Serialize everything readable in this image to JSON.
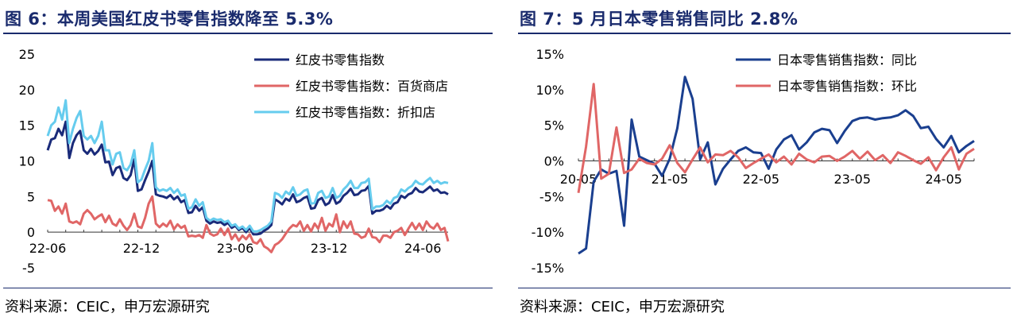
{
  "charts": [
    {
      "title": "图 6：本周美国红皮书零售指数降至 5.3%",
      "source": "资料来源：CEIC，申万宏源研究",
      "chart_data": {
        "type": "line",
        "xlabel": "",
        "ylabel": "",
        "ylim": [
          -5,
          25
        ],
        "yticks": [
          "25",
          "20",
          "15",
          "10",
          "5",
          "0",
          "-5"
        ],
        "ytick_values": [
          25,
          20,
          15,
          10,
          5,
          0,
          -5
        ],
        "xticks": [
          "22-06",
          "22-12",
          "23-06",
          "23-12",
          "24-06"
        ],
        "xtick_index": [
          0,
          26,
          52,
          78,
          104
        ],
        "legend_position": "top-right",
        "series": [
          {
            "name": "红皮书零售指数",
            "color": "#1a2b7a",
            "values": [
              11.5,
              13.0,
              13.2,
              14.5,
              13.6,
              15.5,
              10.4,
              12.5,
              13.6,
              14.2,
              11.5,
              11.0,
              11.7,
              10.9,
              11.4,
              12.3,
              9.8,
              9.9,
              8.0,
              9.0,
              9.2,
              7.6,
              7.3,
              8.0,
              10.2,
              5.8,
              6.0,
              7.3,
              8.5,
              10.0,
              5.3,
              5.1,
              5.0,
              4.8,
              5.2,
              4.6,
              5.0,
              4.2,
              4.5,
              2.7,
              2.8,
              3.7,
              3.0,
              3.5,
              1.6,
              1.2,
              1.5,
              1.3,
              1.4,
              1.0,
              1.3,
              0.6,
              0.9,
              0.3,
              0.6,
              0.0,
              0.6,
              -0.3,
              -0.3,
              -0.2,
              0.2,
              0.5,
              1.0,
              4.6,
              4.3,
              3.9,
              4.7,
              4.4,
              5.3,
              4.2,
              4.4,
              4.8,
              5.0,
              3.3,
              3.4,
              4.5,
              4.8,
              3.8,
              4.1,
              5.2,
              4.0,
              4.3,
              5.1,
              5.5,
              6.1,
              5.2,
              5.3,
              5.8,
              5.9,
              6.5,
              2.6,
              3.0,
              3.0,
              3.2,
              3.7,
              3.3,
              4.0,
              4.2,
              5.1,
              4.8,
              5.3,
              5.5,
              6.2,
              5.7,
              5.6,
              6.0,
              6.4,
              5.8,
              6.0,
              5.5,
              5.6,
              5.3
            ]
          },
          {
            "name": "红皮书零售指数：百货商店",
            "color": "#e06666",
            "values": [
              4.5,
              4.4,
              3.0,
              3.6,
              2.6,
              4.0,
              1.5,
              1.3,
              1.5,
              1.1,
              2.6,
              3.1,
              2.6,
              1.8,
              2.2,
              2.5,
              1.4,
              2.3,
              1.2,
              0.9,
              1.8,
              0.9,
              0.3,
              1.0,
              2.6,
              0.8,
              0.6,
              2.0,
              4.0,
              5.0,
              1.2,
              0.7,
              1.2,
              0.8,
              1.6,
              0.4,
              1.1,
              0.6,
              0.9,
              -0.6,
              -0.5,
              -0.6,
              -0.4,
              -0.8,
              1.0,
              -0.2,
              -0.5,
              -0.3,
              0.5,
              -0.4,
              0.5,
              -1.0,
              -0.3,
              -1.2,
              -0.5,
              -1.0,
              -0.3,
              -1.4,
              -1.6,
              -1.0,
              -2.0,
              -2.3,
              -2.8,
              -1.8,
              -1.5,
              -1.0,
              -0.2,
              0.5,
              1.0,
              0.8,
              1.5,
              0.2,
              1.0,
              0.1,
              1.2,
              0.5,
              2.0,
              0.2,
              1.2,
              0.8,
              2.5,
              0.0,
              1.5,
              0.6,
              1.5,
              -0.2,
              -0.3,
              -0.8,
              -0.6,
              0.5,
              -0.7,
              -0.8,
              -1.4,
              -0.5,
              -0.5,
              -0.8,
              0.0,
              0.2,
              0.6,
              -0.4,
              0.5,
              1.3,
              0.4,
              1.2,
              0.3,
              1.5,
              0.8,
              0.5,
              1.2,
              0.3,
              0.6,
              -1.3
            ]
          },
          {
            "name": "红皮书零售指数：折扣店",
            "color": "#66ccee",
            "values": [
              13.5,
              15.0,
              15.5,
              17.5,
              15.8,
              18.5,
              12.5,
              14.5,
              16.0,
              17.0,
              13.5,
              13.0,
              13.5,
              12.5,
              13.5,
              15.5,
              11.5,
              11.5,
              9.5,
              11.0,
              11.2,
              9.0,
              8.7,
              9.5,
              11.5,
              7.0,
              7.4,
              8.8,
              10.0,
              12.5,
              6.3,
              5.8,
              6.0,
              5.8,
              6.2,
              5.5,
              6.0,
              5.1,
              5.3,
              3.3,
              3.5,
              4.6,
              3.7,
              4.2,
              2.0,
              1.6,
              1.9,
              1.7,
              1.8,
              1.4,
              1.6,
              0.9,
              1.1,
              0.5,
              0.8,
              0.3,
              0.9,
              0.1,
              0.1,
              0.3,
              0.6,
              0.9,
              1.5,
              5.5,
              5.3,
              4.8,
              5.7,
              5.3,
              6.3,
              5.1,
              5.3,
              5.8,
              6.0,
              4.0,
              4.1,
              5.5,
              5.8,
              4.8,
              5.0,
              6.2,
              4.8,
              5.1,
              6.0,
              6.5,
              7.2,
              6.2,
              6.2,
              6.9,
              7.0,
              7.5,
              3.2,
              3.6,
              3.6,
              3.8,
              4.4,
              4.0,
              4.8,
              5.0,
              6.0,
              5.7,
              6.2,
              6.5,
              7.2,
              6.8,
              6.7,
              7.2,
              7.6,
              6.9,
              7.2,
              6.8,
              7.0,
              6.9
            ]
          }
        ]
      }
    },
    {
      "title": "图 7：5 月日本零售销售同比 2.8%",
      "source": "资料来源：CEIC，申万宏源研究",
      "chart_data": {
        "type": "line",
        "xlabel": "",
        "ylabel": "",
        "ylim": [
          -15,
          15
        ],
        "yticks": [
          "15%",
          "10%",
          "5%",
          "0%",
          "-5%",
          "-10%",
          "-15%"
        ],
        "ytick_values": [
          15,
          10,
          5,
          0,
          -5,
          -10,
          -15
        ],
        "xticks": [
          "20-05",
          "21-05",
          "22-05",
          "23-05",
          "24-05"
        ],
        "xtick_index": [
          0,
          12,
          24,
          36,
          48
        ],
        "legend_position": "top-right",
        "series": [
          {
            "name": "日本零售销售指数：同比",
            "color": "#1a3f8f",
            "values": [
              -13.0,
              -12.3,
              -2.9,
              -1.2,
              -1.8,
              -1.4,
              -9.1,
              5.8,
              0.6,
              0.1,
              -0.4,
              -2.1,
              0.3,
              4.6,
              11.8,
              8.7,
              0.2,
              2.6,
              -3.3,
              -1.1,
              0.2,
              1.4,
              1.9,
              1.2,
              1.1,
              -1.1,
              1.6,
              3.0,
              3.6,
              1.6,
              2.6,
              4.0,
              4.5,
              4.3,
              2.5,
              4.2,
              5.6,
              6.0,
              6.1,
              5.8,
              6.0,
              6.1,
              6.4,
              7.1,
              6.3,
              4.6,
              4.8,
              3.1,
              1.9,
              3.5,
              1.2,
              2.1,
              2.8
            ]
          },
          {
            "name": "日本零售销售指数：环比",
            "color": "#e06666",
            "values": [
              -4.5,
              2.0,
              10.8,
              -2.5,
              -1.8,
              4.7,
              -1.7,
              -1.2,
              0.3,
              -0.3,
              -0.5,
              0.3,
              2.2,
              -0.3,
              -1.6,
              0.2,
              1.9,
              -0.2,
              0.9,
              0.8,
              1.4,
              0.5,
              -1.0,
              -0.3,
              0.3,
              0.9,
              -0.2,
              0.6,
              -0.5,
              1.0,
              0.2,
              -0.2,
              0.6,
              0.7,
              0.0,
              0.6,
              1.4,
              0.3,
              1.3,
              0.1,
              0.8,
              -0.3,
              1.2,
              0.7,
              0.1,
              -0.4,
              0.5,
              -1.3,
              0.5,
              1.9,
              -1.2,
              1.0,
              1.7
            ]
          }
        ]
      }
    }
  ]
}
